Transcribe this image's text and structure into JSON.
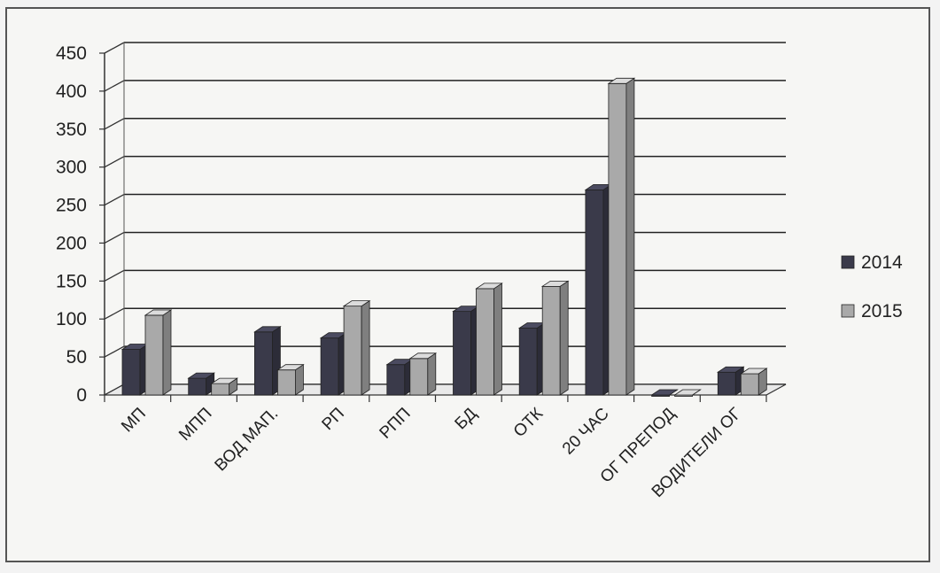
{
  "chart_data": {
    "type": "bar",
    "categories": [
      "МП",
      "МПП",
      "ВОД МАП.",
      "РП",
      "РПП",
      "БД",
      "ОТК",
      "20 ЧАС",
      "ОГ ПРЕПОД",
      "ВОДИТЕЛИ ОГ"
    ],
    "series": [
      {
        "name": "2014",
        "values": [
          60,
          22,
          83,
          75,
          40,
          110,
          88,
          270,
          0,
          30
        ],
        "color": "#3a3a4a"
      },
      {
        "name": "2015",
        "values": [
          105,
          15,
          33,
          117,
          48,
          140,
          143,
          410,
          0,
          28
        ],
        "color": "#a9a9a9"
      }
    ],
    "ylim": [
      0,
      450
    ],
    "yticks": [
      "0",
      "50",
      "100",
      "150",
      "200",
      "250",
      "300",
      "350",
      "400",
      "450"
    ],
    "grid": true,
    "legend_position": "right",
    "title": "",
    "xlabel": "",
    "ylabel": ""
  }
}
